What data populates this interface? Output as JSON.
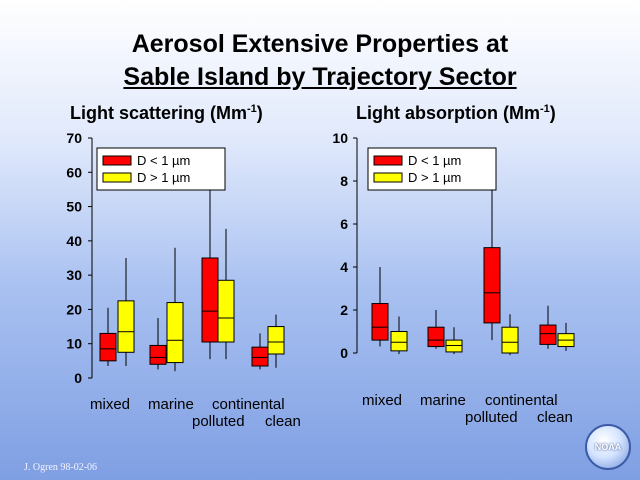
{
  "title_line1": "Aerosol Extensive Properties at",
  "title_line2": "Sable Island by Trajectory Sector",
  "footer": "J. Ogren 98-02-06",
  "logo_text": "NOAA",
  "categories_top": [
    "mixed",
    "marine",
    "continental"
  ],
  "categories_bottom": [
    "polluted",
    "clean"
  ],
  "colors": {
    "fine": "#ff0000",
    "coarse": "#ffff00"
  },
  "chart_data": [
    {
      "type": "boxplot",
      "title": "Light scattering (Mm",
      "title_sup": "-1",
      "title_end": ")",
      "categories": [
        "mixed",
        "marine",
        "continental polluted",
        "continental clean"
      ],
      "ylim": [
        0,
        70
      ],
      "yticks": [
        "0",
        "10",
        "20",
        "30",
        "40",
        "50",
        "60",
        "70"
      ],
      "legend": [
        "D < 1 µm",
        "D > 1 µm"
      ],
      "series": [
        {
          "name": "D < 1 µm",
          "boxes": [
            {
              "min": 3.5,
              "q1": 5,
              "median": 8.5,
              "q3": 13,
              "max": 20.5
            },
            {
              "min": 2.5,
              "q1": 4,
              "median": 6,
              "q3": 9.5,
              "max": 17.5
            },
            {
              "min": 5.5,
              "q1": 10.5,
              "median": 19.5,
              "q3": 35,
              "max": 60.5
            },
            {
              "min": 2.5,
              "q1": 3.5,
              "median": 6,
              "q3": 9,
              "max": 13
            }
          ]
        },
        {
          "name": "D > 1 µm",
          "boxes": [
            {
              "min": 3.5,
              "q1": 7.5,
              "median": 13.5,
              "q3": 22.5,
              "max": 35
            },
            {
              "min": 2,
              "q1": 4.5,
              "median": 11,
              "q3": 22,
              "max": 38
            },
            {
              "min": 5.5,
              "q1": 10.5,
              "median": 17.5,
              "q3": 28.5,
              "max": 43.5
            },
            {
              "min": 3,
              "q1": 7,
              "median": 10.5,
              "q3": 15,
              "max": 18.5
            }
          ]
        }
      ]
    },
    {
      "type": "boxplot",
      "title": "Light absorption (Mm",
      "title_sup": "-1",
      "title_end": ")",
      "categories": [
        "mixed",
        "marine",
        "continental polluted",
        "continental clean"
      ],
      "ylim": [
        0,
        10
      ],
      "yticks": [
        "0",
        "2",
        "4",
        "6",
        "8",
        "10"
      ],
      "legend": [
        "D < 1 µm",
        "D > 1 µm"
      ],
      "series": [
        {
          "name": "D < 1 µm",
          "boxes": [
            {
              "min": 0.3,
              "q1": 0.6,
              "median": 1.2,
              "q3": 2.3,
              "max": 4.0
            },
            {
              "min": 0.2,
              "q1": 0.3,
              "median": 0.6,
              "q3": 1.2,
              "max": 2.0
            },
            {
              "min": 0.6,
              "q1": 1.4,
              "median": 2.8,
              "q3": 4.9,
              "max": 8.9
            },
            {
              "min": 0.2,
              "q1": 0.4,
              "median": 0.9,
              "q3": 1.3,
              "max": 2.2
            }
          ]
        },
        {
          "name": "D > 1 µm",
          "boxes": [
            {
              "min": -0.05,
              "q1": 0.1,
              "median": 0.5,
              "q3": 1.0,
              "max": 1.7
            },
            {
              "min": -0.05,
              "q1": 0.05,
              "median": 0.35,
              "q3": 0.6,
              "max": 1.2
            },
            {
              "min": -0.1,
              "q1": 0.0,
              "median": 0.5,
              "q3": 1.2,
              "max": 1.8
            },
            {
              "min": 0.1,
              "q1": 0.3,
              "median": 0.6,
              "q3": 0.9,
              "max": 1.4
            }
          ]
        }
      ]
    }
  ]
}
